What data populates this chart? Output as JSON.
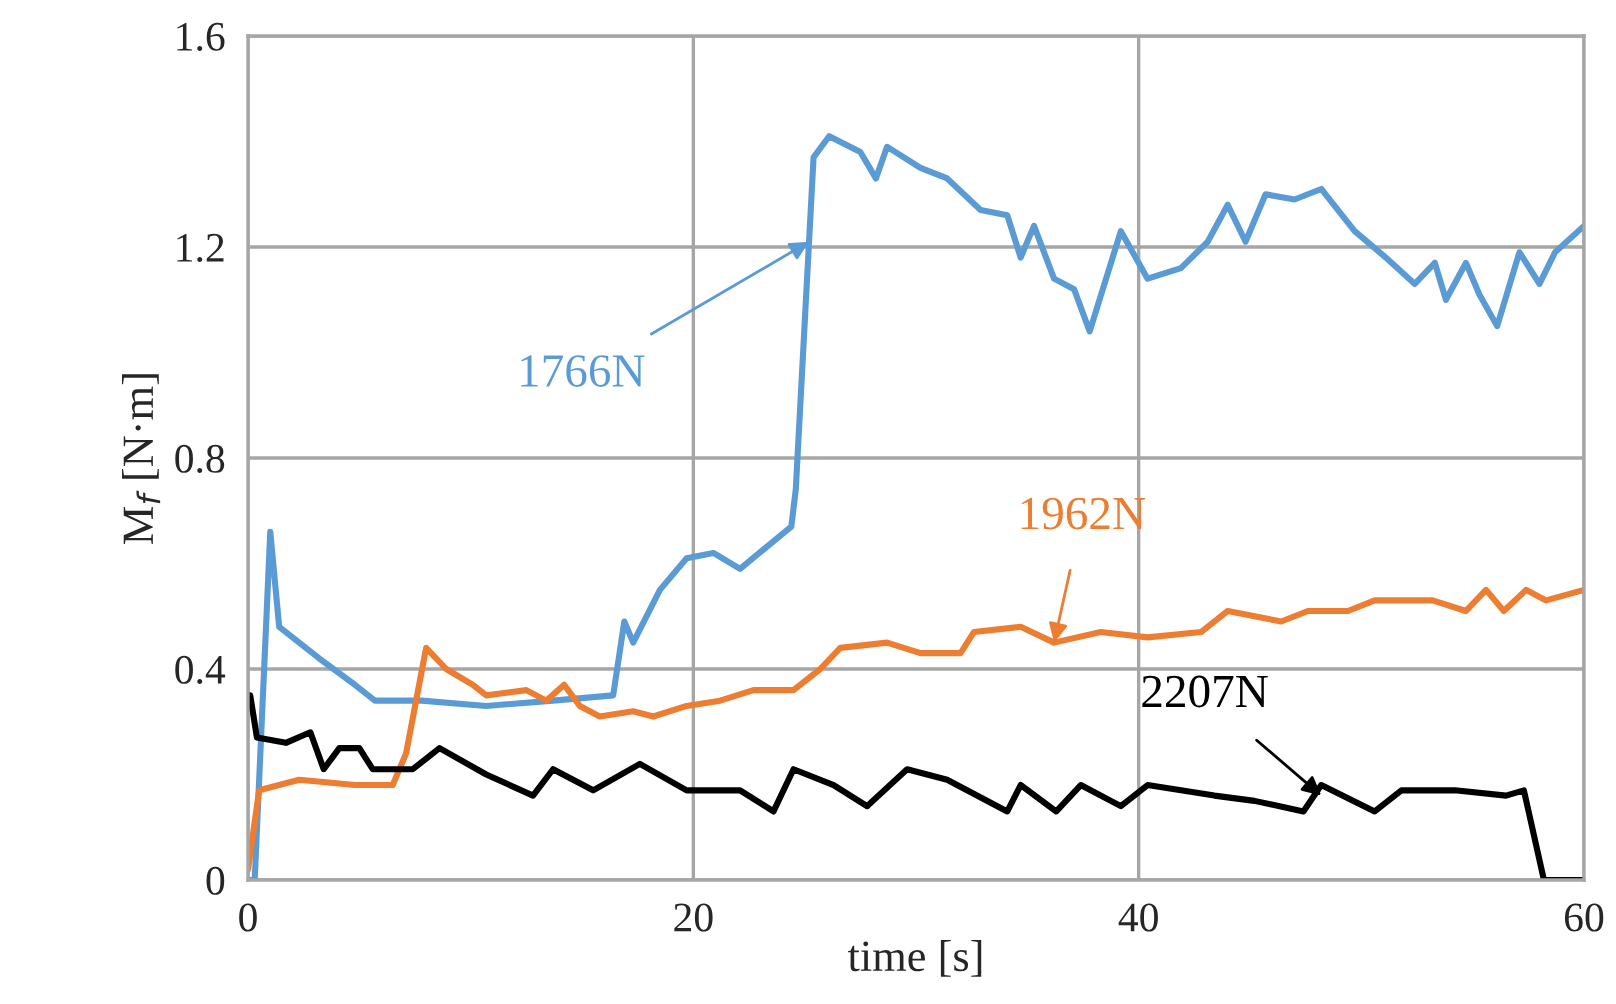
{
  "chart_data": {
    "type": "line",
    "xlabel": "time [s]",
    "ylabel": "M$_{f}$ [N·m]",
    "xlim": [
      0,
      60
    ],
    "ylim": [
      0,
      1.6
    ],
    "xticks": [
      0,
      20,
      40,
      60
    ],
    "yticks": [
      0,
      0.4,
      0.8,
      1.2,
      1.6
    ],
    "grid": true,
    "legend": false,
    "line_style": "solid",
    "marker": "none",
    "series": [
      {
        "color": "#5b9bd5",
        "x": [
          0,
          0.3,
          1.0,
          1.4,
          3.2,
          4.8,
          5.7,
          7.8,
          10.7,
          13.7,
          16.4,
          16.9,
          17.3,
          18.5,
          19.7,
          20.9,
          22.1,
          24.4,
          24.6,
          25.4,
          26.1,
          27.5,
          28.2,
          28.7,
          30.2,
          31.4,
          32.9,
          34.1,
          34.7,
          35.3,
          36.2,
          37.1,
          37.8,
          39.2,
          40.4,
          41.9,
          43.1,
          44.0,
          44.8,
          45.7,
          47.0,
          48.2,
          49.7,
          51.1,
          52.4,
          53.3,
          53.8,
          54.7,
          55.3,
          56.1,
          57.1,
          58.0,
          58.7,
          60
        ],
        "values": [
          0,
          0,
          0.66,
          0.48,
          0.42,
          0.37,
          0.34,
          0.34,
          0.33,
          0.34,
          0.35,
          0.49,
          0.45,
          0.55,
          0.61,
          0.62,
          0.59,
          0.67,
          0.74,
          1.37,
          1.41,
          1.38,
          1.33,
          1.39,
          1.35,
          1.33,
          1.27,
          1.26,
          1.18,
          1.24,
          1.14,
          1.12,
          1.04,
          1.23,
          1.14,
          1.16,
          1.21,
          1.28,
          1.21,
          1.3,
          1.29,
          1.31,
          1.23,
          1.18,
          1.13,
          1.17,
          1.1,
          1.17,
          1.11,
          1.05,
          1.19,
          1.13,
          1.19,
          1.24
        ]
      },
      {
        "color": "#ed7d31",
        "x": [
          0,
          0.5,
          2.3,
          4.8,
          6.5,
          7.1,
          8.0,
          8.9,
          10.1,
          10.7,
          12.5,
          13.4,
          14.2,
          14.9,
          15.8,
          17.3,
          18.2,
          19.7,
          21.2,
          22.7,
          24.5,
          25.7,
          26.6,
          28.7,
          30.2,
          32.0,
          32.6,
          34.7,
          36.2,
          38.3,
          40.4,
          42.8,
          44.0,
          46.4,
          47.6,
          49.4,
          50.6,
          53.2,
          54.7,
          55.6,
          56.4,
          57.4,
          58.3,
          60
        ],
        "values": [
          0.02,
          0.17,
          0.19,
          0.18,
          0.18,
          0.24,
          0.44,
          0.4,
          0.37,
          0.35,
          0.36,
          0.34,
          0.37,
          0.33,
          0.31,
          0.32,
          0.31,
          0.33,
          0.34,
          0.36,
          0.36,
          0.4,
          0.44,
          0.45,
          0.43,
          0.43,
          0.47,
          0.48,
          0.45,
          0.47,
          0.46,
          0.47,
          0.51,
          0.49,
          0.51,
          0.51,
          0.53,
          0.53,
          0.51,
          0.55,
          0.51,
          0.55,
          0.53,
          0.55
        ]
      },
      {
        "color": "#000000",
        "x": [
          0.1,
          0.4,
          1.7,
          2.8,
          3.4,
          4.1,
          5.0,
          5.6,
          7.4,
          8.6,
          10.7,
          12.8,
          13.7,
          15.5,
          17.6,
          19.7,
          22.1,
          23.6,
          24.5,
          26.3,
          27.8,
          29.6,
          31.4,
          34.1,
          34.7,
          36.3,
          37.4,
          39.2,
          40.4,
          43.4,
          45.2,
          47.4,
          48.2,
          50.6,
          51.8,
          54.2,
          56.5,
          57.3,
          58.2,
          60
        ],
        "values": [
          0.35,
          0.27,
          0.26,
          0.28,
          0.21,
          0.25,
          0.25,
          0.21,
          0.21,
          0.25,
          0.2,
          0.16,
          0.21,
          0.17,
          0.22,
          0.17,
          0.17,
          0.13,
          0.21,
          0.18,
          0.14,
          0.21,
          0.19,
          0.13,
          0.18,
          0.13,
          0.18,
          0.14,
          0.18,
          0.16,
          0.15,
          0.13,
          0.18,
          0.13,
          0.17,
          0.17,
          0.16,
          0.17,
          0,
          0
        ]
      }
    ],
    "annotations": [
      {
        "text": "1766N",
        "x": 25.2,
        "y": 1.21
      },
      {
        "text": "1962N",
        "x": 36.2,
        "y": 0.45
      },
      {
        "text": "2207N",
        "x": 48.2,
        "y": 0.16
      }
    ]
  }
}
